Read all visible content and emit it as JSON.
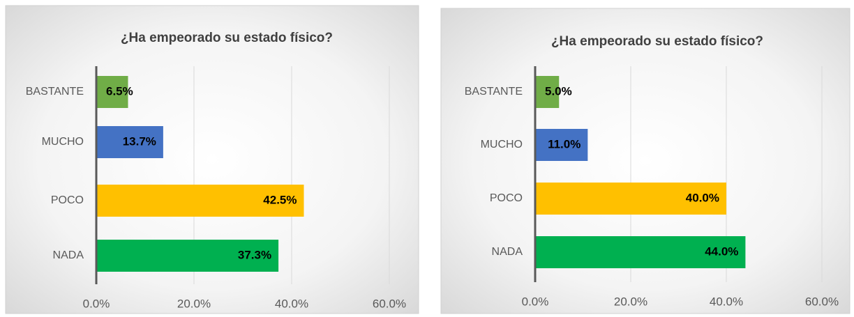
{
  "chart_data": [
    {
      "type": "bar",
      "orientation": "horizontal",
      "title": "¿Ha empeorado su estado físico?",
      "categories": [
        "BASTANTE",
        "MUCHO",
        "POCO",
        "NADA"
      ],
      "values": [
        6.5,
        13.7,
        42.5,
        37.3
      ],
      "value_labels": [
        "6.5%",
        "13.7%",
        "42.5%",
        "37.3%"
      ],
      "colors": [
        "#70ad47",
        "#4472c4",
        "#ffc000",
        "#00b050"
      ],
      "xlim": [
        0,
        60
      ],
      "xticks": [
        {
          "value": 0,
          "label": "0.0%"
        },
        {
          "value": 20,
          "label": "20.0%"
        },
        {
          "value": 40,
          "label": "40.0%"
        },
        {
          "value": 60,
          "label": "60.0%"
        }
      ],
      "grid": true
    },
    {
      "type": "bar",
      "orientation": "horizontal",
      "title": "¿Ha empeorado su estado físico?",
      "categories": [
        "BASTANTE",
        "MUCHO",
        "POCO",
        "NADA"
      ],
      "values": [
        5.0,
        11.0,
        40.0,
        44.0
      ],
      "value_labels": [
        "5.0%",
        "11.0%",
        "40.0%",
        "44.0%"
      ],
      "colors": [
        "#70ad47",
        "#4472c4",
        "#ffc000",
        "#00b050"
      ],
      "xlim": [
        0,
        60
      ],
      "xticks": [
        {
          "value": 0,
          "label": "0.0%"
        },
        {
          "value": 20,
          "label": "20.0%"
        },
        {
          "value": 40,
          "label": "40.0%"
        },
        {
          "value": 60,
          "label": "60.0%"
        }
      ],
      "grid": true
    }
  ]
}
